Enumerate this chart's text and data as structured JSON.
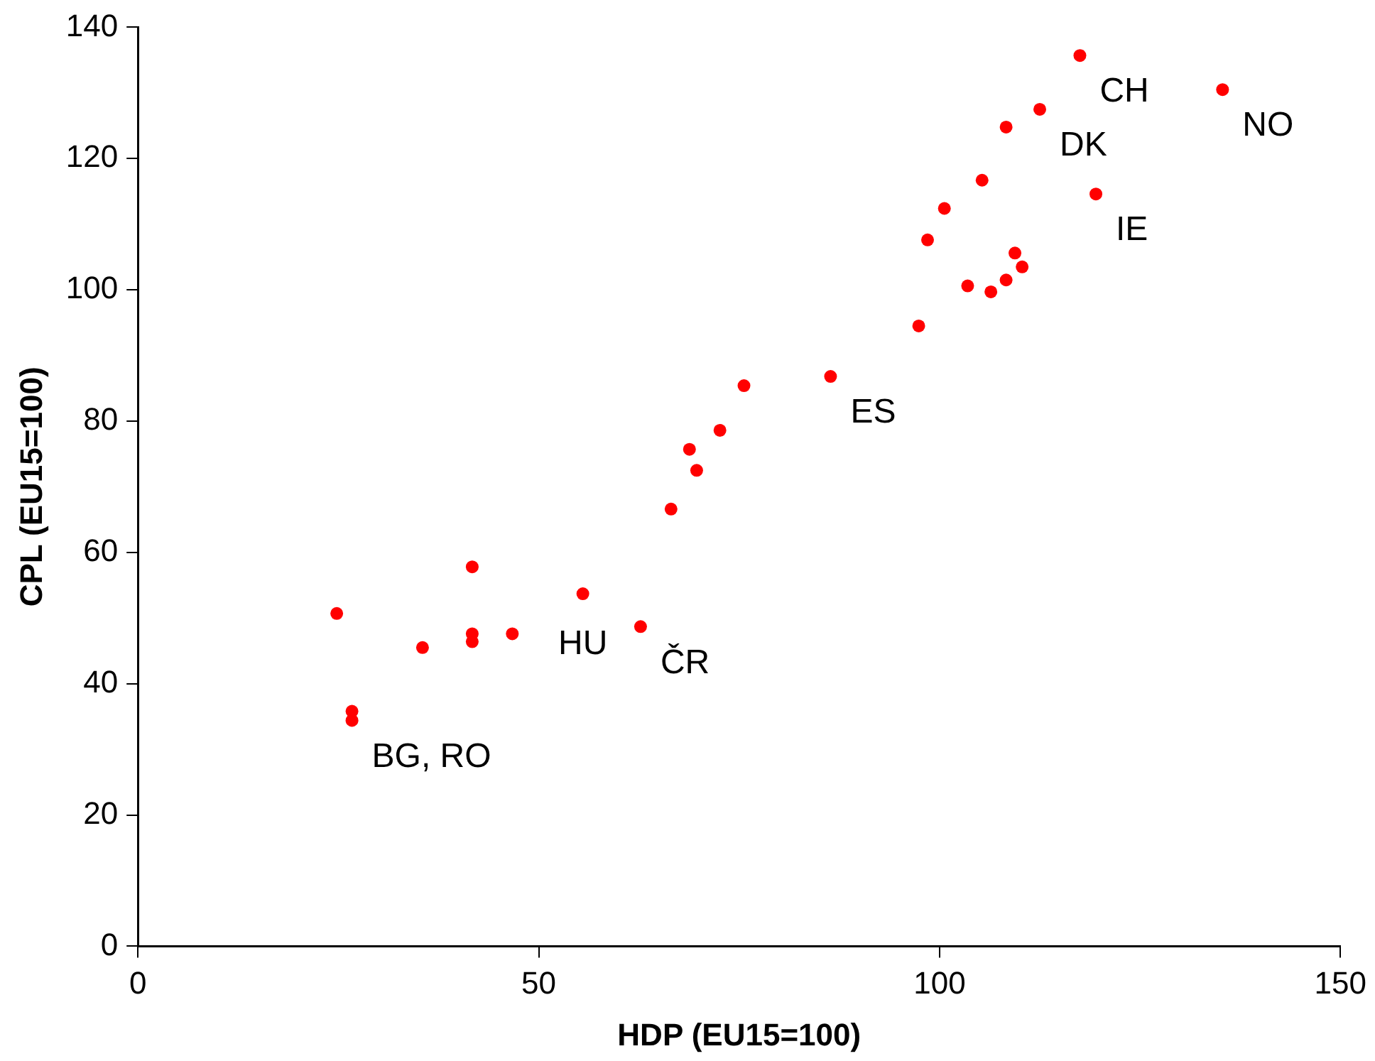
{
  "chart_data": {
    "type": "scatter",
    "xlabel": "HDP (EU15=100)",
    "ylabel": "CPL (EU15=100)",
    "xlim": [
      0,
      150
    ],
    "xticks": [
      0,
      50,
      100,
      150
    ],
    "ylim": [
      0,
      140
    ],
    "yticks": [
      0,
      20,
      40,
      60,
      80,
      100,
      120,
      140
    ],
    "grid": false,
    "legend": false,
    "marker": "circle",
    "series": [
      {
        "color": "#ff0000",
        "x": [
          24.8,
          26.7,
          26.7,
          35.5,
          41.7,
          41.7,
          41.7,
          46.7,
          55.5,
          62.7,
          66.5,
          68.8,
          69.7,
          72.6,
          75.6,
          86.4,
          97.4,
          98.5,
          100.6,
          103.5,
          105.3,
          106.4,
          108.3,
          108.3,
          109.4,
          110.3,
          112.5,
          117.5,
          119.5,
          135.3
        ],
        "values": [
          50.7,
          35.8,
          34.4,
          45.5,
          57.8,
          47.6,
          46.4,
          47.6,
          53.7,
          48.7,
          66.6,
          75.7,
          72.5,
          78.6,
          85.4,
          86.8,
          94.5,
          107.6,
          112.4,
          100.6,
          116.7,
          99.7,
          124.8,
          101.5,
          105.6,
          103.5,
          127.5,
          135.7,
          114.6,
          130.5
        ]
      }
    ],
    "annotations": [
      {
        "text": "CH",
        "x": 117.5,
        "y": 135.7
      },
      {
        "text": "NO",
        "x": 135.3,
        "y": 130.5
      },
      {
        "text": "DK",
        "x": 112.5,
        "y": 127.5
      },
      {
        "text": "IE",
        "x": 119.5,
        "y": 114.6
      },
      {
        "text": "ES",
        "x": 86.4,
        "y": 86.8
      },
      {
        "text": "HU",
        "x": 55.5,
        "y": 53.7
      },
      {
        "text": "ČR",
        "x": 62.7,
        "y": 48.7
      },
      {
        "text": "BG, RO",
        "x": 26.7,
        "y": 34.4
      }
    ]
  }
}
